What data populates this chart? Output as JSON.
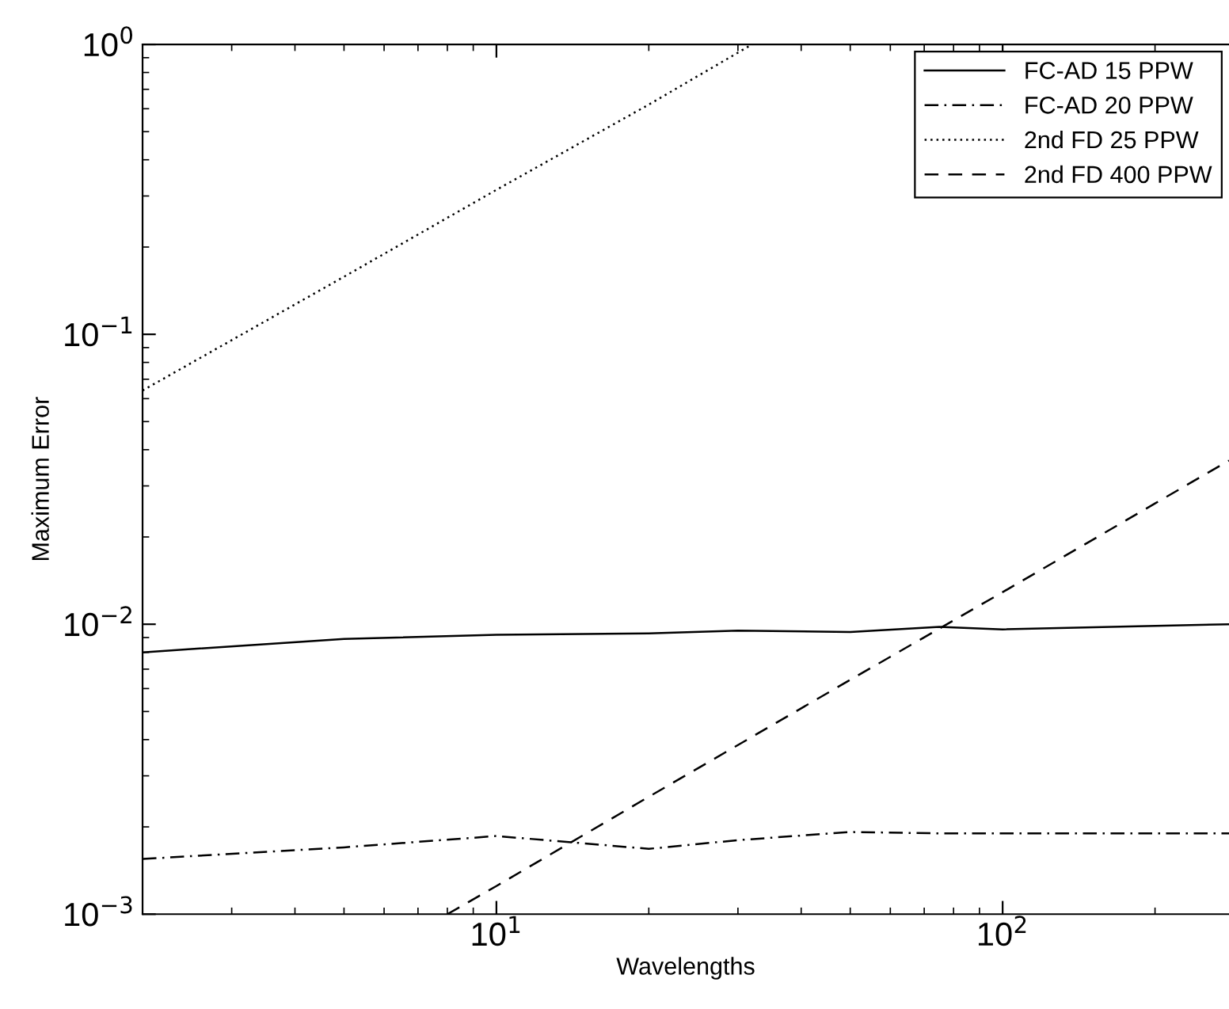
{
  "chart_data": {
    "type": "line",
    "xlabel": "Wavelengths",
    "ylabel": "Maximum Error",
    "log": "xy",
    "legend": "top right",
    "grid": false,
    "marker": "none",
    "xlim": [
      2,
      280
    ],
    "ylim": [
      0.001,
      1
    ],
    "xticks": [
      {
        "value": 10,
        "label": "10$^{1}$"
      },
      {
        "value": 100,
        "label": "10$^{2}$"
      }
    ],
    "yticks": [
      {
        "value": 0.001,
        "label": "10$^{−3}$"
      },
      {
        "value": 0.01,
        "label": "10$^{−2}$"
      },
      {
        "value": 0.1,
        "label": "10$^{−1}$"
      },
      {
        "value": 1,
        "label": "10$^{0}$"
      }
    ],
    "series": [
      {
        "name": "FC-AD 15 PPW",
        "color": "#000000",
        "line_style": "solid",
        "x": [
          2,
          5,
          10,
          20,
          30,
          50,
          75,
          100,
          280
        ],
        "values": [
          0.008,
          0.0089,
          0.0092,
          0.0093,
          0.0095,
          0.0094,
          0.0098,
          0.0096,
          0.01
        ]
      },
      {
        "name": "FC-AD 20 PPW",
        "color": "#000000",
        "line_style": "dashdot",
        "x": [
          2,
          5,
          10,
          20,
          30,
          50,
          75,
          100,
          280
        ],
        "values": [
          0.00155,
          0.0017,
          0.00186,
          0.00168,
          0.0018,
          0.00192,
          0.0019,
          0.0019,
          0.0019
        ]
      },
      {
        "name": "2nd FD 25 PPW",
        "color": "#000000",
        "line_style": "dotted",
        "x": [
          2,
          5,
          10,
          20,
          32
        ],
        "values": [
          0.064,
          0.158,
          0.315,
          0.62,
          1.0
        ]
      },
      {
        "name": "2nd FD 400 PPW",
        "color": "#000000",
        "line_style": "dashed",
        "x": [
          8,
          10,
          20,
          50,
          100,
          200,
          280
        ],
        "values": [
          0.001,
          0.00125,
          0.00254,
          0.00643,
          0.0129,
          0.0261,
          0.0367
        ]
      }
    ]
  }
}
